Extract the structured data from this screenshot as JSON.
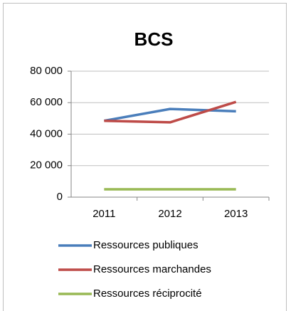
{
  "chart_data": {
    "type": "line",
    "title": "BCS",
    "categories": [
      "2011",
      "2012",
      "2013"
    ],
    "series": [
      {
        "name": "Ressources publiques",
        "color": "#4a7ebb",
        "values": [
          48500,
          56000,
          54500
        ]
      },
      {
        "name": "Ressources marchandes",
        "color": "#be4b48",
        "values": [
          48500,
          47500,
          60500
        ]
      },
      {
        "name": "Ressources réciprocité",
        "color": "#98b954",
        "values": [
          5000,
          5000,
          5000
        ]
      }
    ],
    "ylim": [
      0,
      80000
    ],
    "yticks": [
      0,
      {
        "value": 20000,
        "label": "20 000"
      },
      {
        "value": 40000,
        "label": "40 000"
      },
      {
        "value": 60000,
        "label": "60 000"
      },
      {
        "value": 80000,
        "label": "80 000"
      }
    ],
    "grid": true,
    "legend": "bottom"
  }
}
